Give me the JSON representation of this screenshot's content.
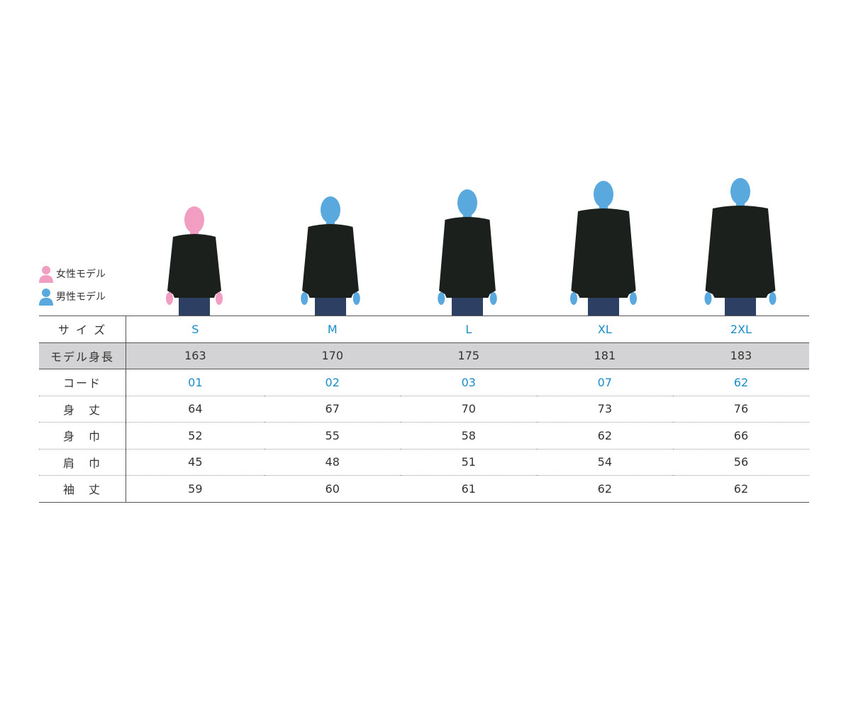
{
  "legend": {
    "female": {
      "label": "女性モデル",
      "icon": "female-model-icon",
      "color": "#f19ec2"
    },
    "male": {
      "label": "男性モデル",
      "icon": "male-model-icon",
      "color": "#5aa9de"
    }
  },
  "colors": {
    "accent": "#1a8cc8",
    "sweater": "#1b201c",
    "jeans": "#2d3f62",
    "header_row_bg": "#d3d3d5"
  },
  "models": [
    {
      "size": "S",
      "gender": "female"
    },
    {
      "size": "M",
      "gender": "male"
    },
    {
      "size": "L",
      "gender": "male"
    },
    {
      "size": "XL",
      "gender": "male"
    },
    {
      "size": "2XL",
      "gender": "male"
    }
  ],
  "table": {
    "rows": [
      {
        "label": "サ イ ズ",
        "values": [
          "S",
          "M",
          "L",
          "XL",
          "2XL"
        ],
        "accent": true
      },
      {
        "label": "モデル身長",
        "values": [
          "163",
          "170",
          "175",
          "181",
          "183"
        ]
      },
      {
        "label": "コード",
        "values": [
          "01",
          "02",
          "03",
          "07",
          "62"
        ],
        "accent": true
      },
      {
        "label": "身　丈",
        "values": [
          "64",
          "67",
          "70",
          "73",
          "76"
        ]
      },
      {
        "label": "身　巾",
        "values": [
          "52",
          "55",
          "58",
          "62",
          "66"
        ]
      },
      {
        "label": "肩　巾",
        "values": [
          "45",
          "48",
          "51",
          "54",
          "56"
        ]
      },
      {
        "label": "袖　丈",
        "values": [
          "59",
          "60",
          "61",
          "62",
          "62"
        ]
      }
    ]
  }
}
